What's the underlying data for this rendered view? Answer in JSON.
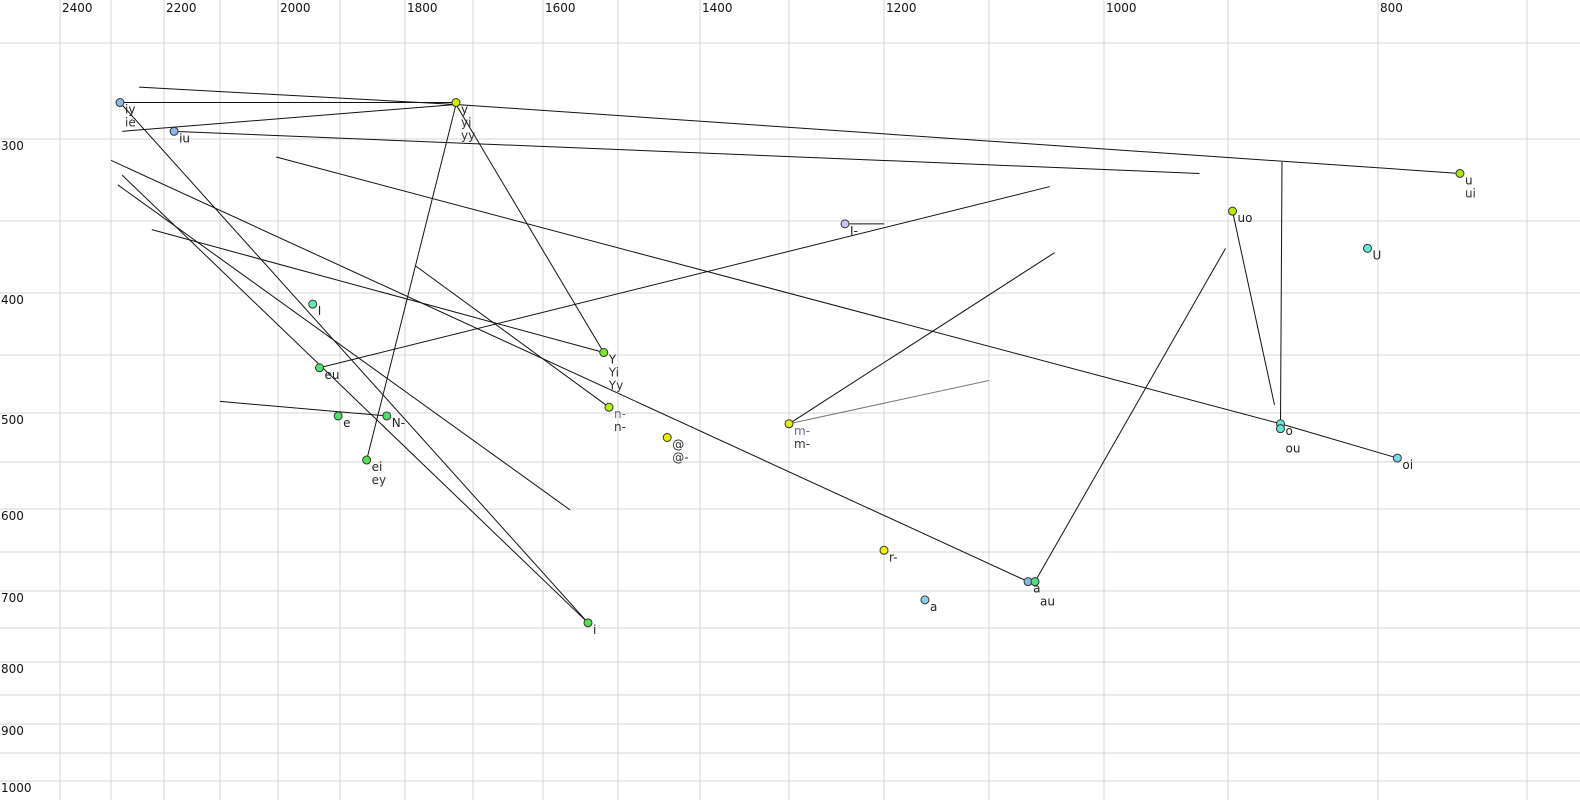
{
  "chart_data": {
    "type": "scatter",
    "title": "",
    "xlabel": "",
    "ylabel": "",
    "x_axis": {
      "reversed": true,
      "scale": "log",
      "ticks": [
        2400,
        2200,
        2000,
        1800,
        1600,
        1400,
        1200,
        1000,
        800
      ],
      "position": "top"
    },
    "y_axis": {
      "reversed": false,
      "scale": "log",
      "ticks": [
        300,
        400,
        500,
        600,
        700,
        800,
        900,
        1000
      ],
      "position": "left"
    },
    "grid": true,
    "points": [
      {
        "x": 2283,
        "y": 281,
        "labels": [
          "iy",
          "ie"
        ],
        "color": "#8ab8e8"
      },
      {
        "x": 2182,
        "y": 296,
        "labels": [
          "iu"
        ],
        "color": "#8ab8e8"
      },
      {
        "x": 1725,
        "y": 281,
        "labels": [
          "y",
          "yi",
          "yy"
        ],
        "color": "#d4ec00"
      },
      {
        "x": 745,
        "y": 321,
        "labels": [
          "u",
          "ui"
        ],
        "color": "#a8e800"
      },
      {
        "x": 897,
        "y": 344,
        "labels": [
          "uo"
        ],
        "color": "#b8e800"
      },
      {
        "x": 807,
        "y": 369,
        "labels": [
          "U"
        ],
        "color": "#60e8d0"
      },
      {
        "x": 865,
        "y": 511,
        "labels": [
          "o"
        ],
        "color": "#60e8d0"
      },
      {
        "x": 865,
        "y": 516,
        "labels": [
          "ou"
        ],
        "color": "#60e8d0"
      },
      {
        "x": 787,
        "y": 546,
        "labels": [
          "oi"
        ],
        "color": "#7ad8f0"
      },
      {
        "x": 1241,
        "y": 352,
        "labels": [
          "I-"
        ],
        "color": "#ccc4f4"
      },
      {
        "x": 1300,
        "y": 511,
        "labels": [
          "m-",
          "m-"
        ],
        "color": "#e4f000"
      },
      {
        "x": 1944,
        "y": 409,
        "labels": [
          "I"
        ],
        "color": "#60eab0"
      },
      {
        "x": 1933,
        "y": 461,
        "labels": [
          "eu"
        ],
        "color": "#50e070"
      },
      {
        "x": 1519,
        "y": 448,
        "labels": [
          "Y",
          "Yi",
          "Yy"
        ],
        "color": "#78e830"
      },
      {
        "x": 1512,
        "y": 495,
        "labels": [
          "n-",
          "n-"
        ],
        "color": "#b4f020"
      },
      {
        "x": 1440,
        "y": 525,
        "labels": [
          "@",
          "@-"
        ],
        "color": "#e8f000"
      },
      {
        "x": 1903,
        "y": 503,
        "labels": [
          "e"
        ],
        "color": "#50e070"
      },
      {
        "x": 1828,
        "y": 503,
        "labels": [
          "N-"
        ],
        "color": "#50e070"
      },
      {
        "x": 1859,
        "y": 548,
        "labels": [
          "ei",
          "ey"
        ],
        "color": "#50e050"
      },
      {
        "x": 1540,
        "y": 743,
        "labels": [
          "i"
        ],
        "color": "#50e050"
      },
      {
        "x": 1200,
        "y": 648,
        "labels": [
          "r-"
        ],
        "color": "#f4f000"
      },
      {
        "x": 1161,
        "y": 712,
        "labels": [
          "a"
        ],
        "color": "#8ad0f0"
      },
      {
        "x": 1066,
        "y": 688,
        "labels": [
          "a"
        ],
        "color": "#8ab8e8"
      },
      {
        "x": 1060,
        "y": 688,
        "labels": [
          "au"
        ],
        "color": "#50e080"
      }
    ],
    "segments": [
      {
        "from": [
          2247,
          273
        ],
        "to": [
          1725,
          282
        ]
      },
      {
        "from": [
          2283,
          281
        ],
        "to": [
          1725,
          281
        ]
      },
      {
        "from": [
          2279,
          296
        ],
        "to": [
          1725,
          282
        ]
      },
      {
        "from": [
          1725,
          282
        ],
        "to": [
          745,
          321
        ]
      },
      {
        "from": [
          2182,
          296
        ],
        "to": [
          923,
          321
        ]
      },
      {
        "from": [
          864,
          314
        ],
        "to": [
          865,
          511
        ]
      },
      {
        "from": [
          1725,
          282
        ],
        "to": [
          1859,
          548
        ]
      },
      {
        "from": [
          1725,
          282
        ],
        "to": [
          1519,
          448
        ]
      },
      {
        "from": [
          2283,
          281
        ],
        "to": [
          1540,
          743
        ]
      },
      {
        "from": [
          2300,
          313
        ],
        "to": [
          1066,
          688
        ]
      },
      {
        "from": [
          2279,
          322
        ],
        "to": [
          1540,
          743
        ]
      },
      {
        "from": [
          2287,
          328
        ],
        "to": [
          1564,
          601
        ]
      },
      {
        "from": [
          2223,
          356
        ],
        "to": [
          1519,
          448
        ]
      },
      {
        "from": [
          2003,
          311
        ],
        "to": [
          865,
          511
        ]
      },
      {
        "from": [
          865,
          511
        ],
        "to": [
          787,
          546
        ]
      },
      {
        "from": [
          1933,
          461
        ],
        "to": [
          1047,
          329
        ]
      },
      {
        "from": [
          1785,
          381
        ],
        "to": [
          1512,
          495
        ]
      },
      {
        "from": [
          2100,
          490
        ],
        "to": [
          1828,
          503
        ]
      },
      {
        "from": [
          1300,
          511
        ],
        "to": [
          1043,
          372
        ]
      },
      {
        "from": [
          1300,
          511
        ],
        "to": [
          1100,
          472
        ],
        "color": "#777777"
      },
      {
        "from": [
          1060,
          688
        ],
        "to": [
          902,
          369
        ]
      },
      {
        "from": [
          897,
          344
        ],
        "to": [
          869,
          493
        ]
      },
      {
        "from": [
          1241,
          352
        ],
        "to": [
          1200,
          352
        ]
      }
    ]
  }
}
